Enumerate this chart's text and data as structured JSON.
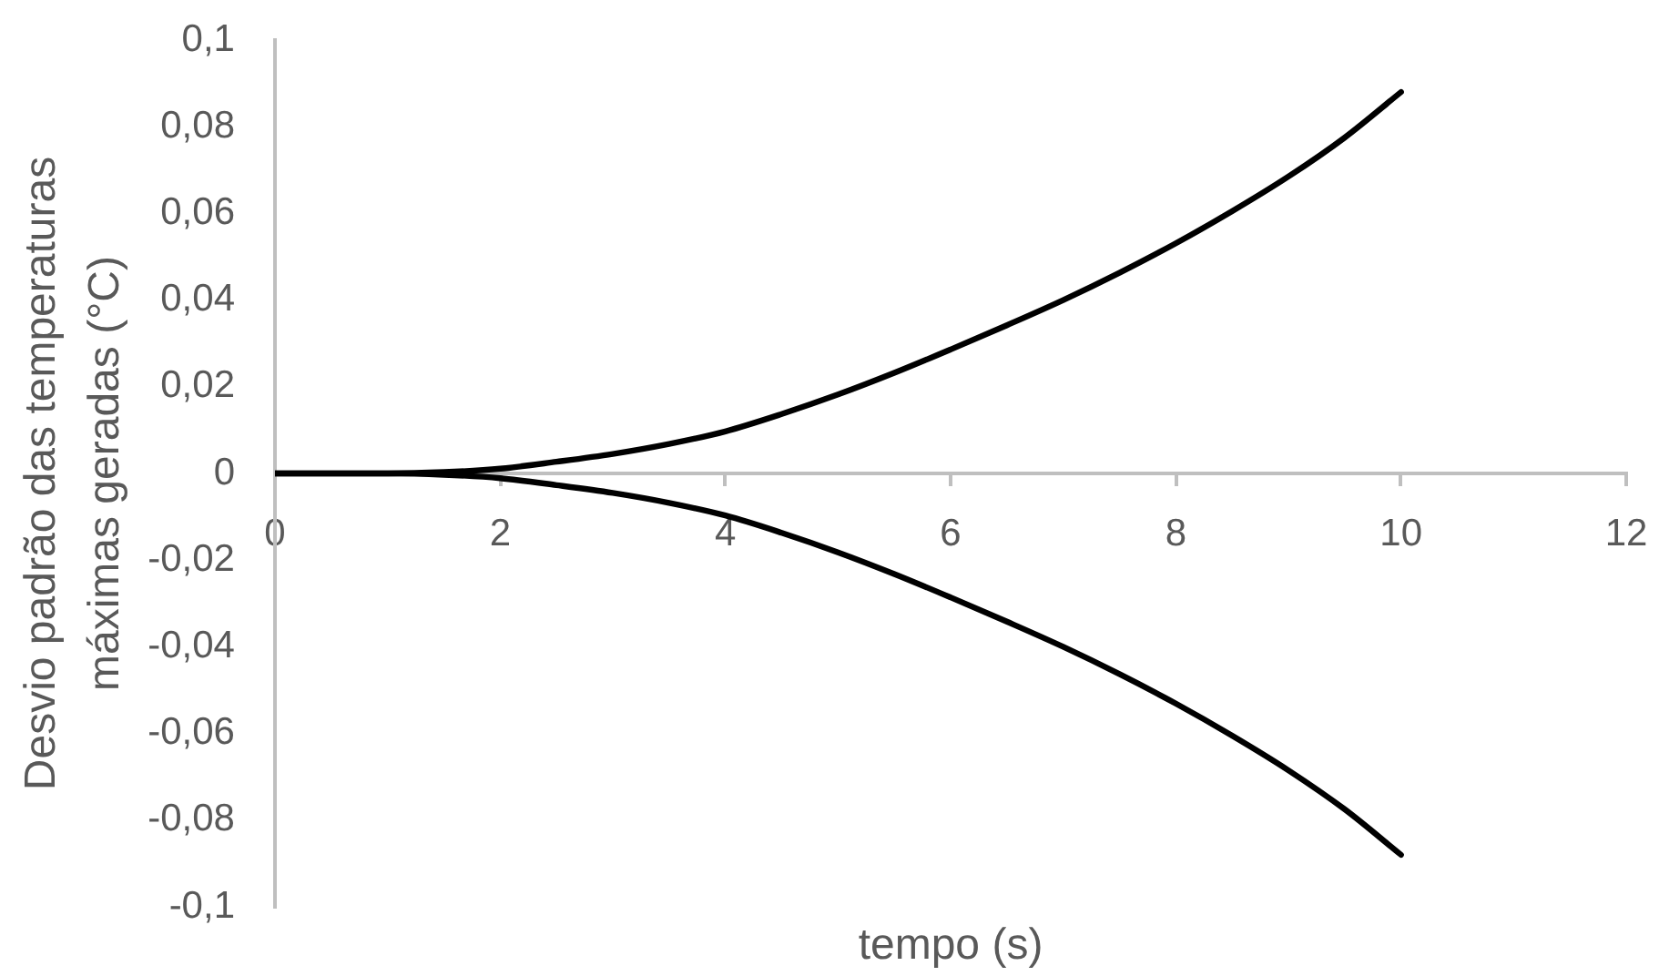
{
  "chart_data": {
    "type": "line",
    "xlabel": "tempo (s)",
    "ylabel": "Desvio padrão das temperaturas máximas geradas (°C)",
    "x": [
      0,
      1,
      1.5,
      2,
      2.5,
      3,
      3.5,
      4,
      4.5,
      5,
      5.5,
      6,
      6.5,
      7,
      7.5,
      8,
      8.5,
      9,
      9.5,
      10
    ],
    "series": [
      {
        "color": "#000000",
        "values": [
          0,
          0,
          0.0003,
          0.0011,
          0.0027,
          0.0045,
          0.0068,
          0.0097,
          0.0137,
          0.0182,
          0.0232,
          0.0286,
          0.0342,
          0.04,
          0.0463,
          0.0531,
          0.0605,
          0.0685,
          0.0775,
          0.088
        ]
      },
      {
        "color": "#000000",
        "values": [
          0,
          0,
          -0.0003,
          -0.0011,
          -0.0027,
          -0.0045,
          -0.0068,
          -0.0097,
          -0.0137,
          -0.0182,
          -0.0232,
          -0.0286,
          -0.0342,
          -0.04,
          -0.0463,
          -0.0531,
          -0.0605,
          -0.0685,
          -0.0775,
          -0.088
        ]
      }
    ],
    "xlim": [
      0,
      12
    ],
    "xticks": [
      0,
      2,
      4,
      6,
      8,
      10,
      12
    ],
    "ylim": [
      -0.1,
      0.1
    ],
    "yticks": [
      {
        "value": -0.1,
        "label": "-0,1"
      },
      {
        "value": -0.08,
        "label": "-0,08"
      },
      {
        "value": -0.06,
        "label": "-0,06"
      },
      {
        "value": -0.04,
        "label": "-0,04"
      },
      {
        "value": -0.02,
        "label": "-0,02"
      },
      0,
      {
        "value": 0.02,
        "label": "0,02"
      },
      {
        "value": 0.04,
        "label": "0,04"
      },
      {
        "value": 0.06,
        "label": "0,06"
      },
      {
        "value": 0.08,
        "label": "0,08"
      },
      {
        "value": 0.1,
        "label": "0,1"
      }
    ],
    "grid": false,
    "legend": false
  }
}
